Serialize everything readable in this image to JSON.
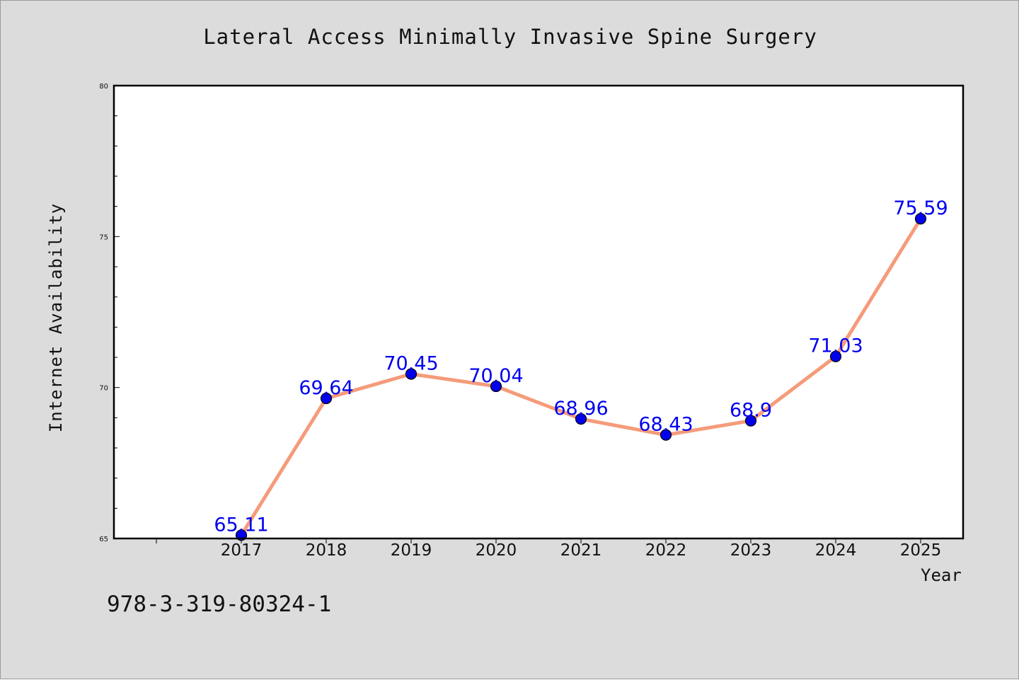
{
  "chart_data": {
    "type": "line",
    "title": "Lateral Access Minimally Invasive Spine Surgery",
    "xlabel": "Year",
    "ylabel": "Internet Availability",
    "categories": [
      "2017",
      "2018",
      "2019",
      "2020",
      "2021",
      "2022",
      "2023",
      "2024",
      "2025"
    ],
    "series": [
      {
        "values": [
          65.11,
          69.64,
          70.45,
          70.04,
          68.96,
          68.43,
          68.9,
          71.03,
          75.59
        ],
        "data_labels": [
          "65.11",
          "69.64",
          "70.45",
          "70.04",
          "68.96",
          "68.43",
          "68.9",
          "71.03",
          "75.59"
        ]
      }
    ],
    "ylim": [
      65,
      80
    ],
    "yticks": [
      "65",
      "70",
      "75",
      "80"
    ],
    "grid": false,
    "line_color": "#f59b7a",
    "marker_color": "#0000ee",
    "label_color": "#0000ee"
  },
  "footer_text": "978-3-319-80324-1"
}
